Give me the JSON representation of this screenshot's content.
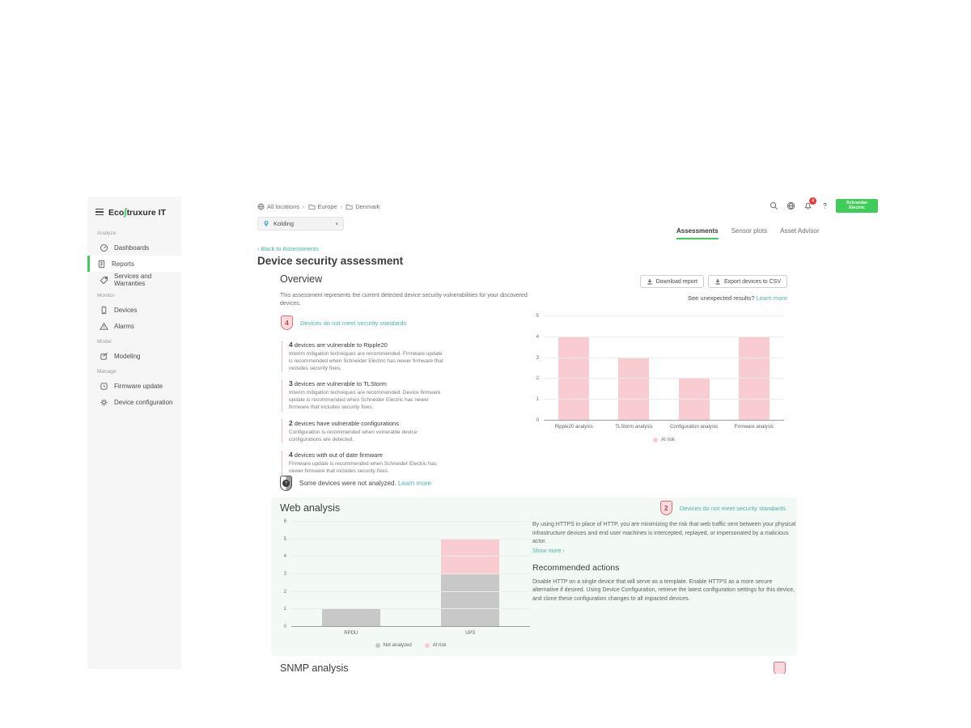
{
  "sidebar": {
    "logo": {
      "text_before": "Eco",
      "mark": "∫",
      "text_after": "truxure IT"
    },
    "sections": [
      {
        "label": "Analyze",
        "items": [
          {
            "label": "Dashboards"
          },
          {
            "label": "Reports"
          },
          {
            "label": "Services and Warranties"
          }
        ]
      },
      {
        "label": "Monitor",
        "items": [
          {
            "label": "Devices"
          },
          {
            "label": "Alarms"
          }
        ]
      },
      {
        "label": "Model",
        "items": [
          {
            "label": "Modeling"
          }
        ]
      },
      {
        "label": "Manage",
        "items": [
          {
            "label": "Firmware update"
          },
          {
            "label": "Device configuration"
          }
        ]
      }
    ]
  },
  "topbar": {
    "breadcrumb": [
      {
        "label": "All locations"
      },
      {
        "label": "Europe"
      },
      {
        "label": "Denmark"
      }
    ],
    "location_selector": {
      "value": "Kolding"
    },
    "notification_count": "4",
    "brand_line1": "Schneider",
    "brand_line2": "Electric"
  },
  "tabs": [
    {
      "label": "Assessments"
    },
    {
      "label": "Sensor plots"
    },
    {
      "label": "Asset Advisor"
    }
  ],
  "page": {
    "back_link": "Back to Assessments",
    "title": "Device security assessment"
  },
  "overview": {
    "heading": "Overview",
    "download_button": "Download report",
    "export_button": "Export devices to CSV",
    "description": "This assessment represents the current detected device security vulnerabilities for your discovered devices.",
    "unexpected_text": "See unexpected results?",
    "learn_more": "Learn more",
    "badge_count": "4",
    "badge_text": "Devices do not meet security standards",
    "findings": [
      {
        "count": "4",
        "title": "devices are vulnerable to Ripple20",
        "description": "Interim mitigation techniques are recommended. Firmware update is recommended when Schneider Electric has newer firmware that includes security fixes."
      },
      {
        "count": "3",
        "title": "devices are vulnerable to TLStorm",
        "description": "Interim mitigation techniques are recommended. Device firmware update is recommended when Schneider Electric has newer firmware that includes security fixes."
      },
      {
        "count": "2",
        "title": "devices have vulnerable configurations",
        "description": "Configuration is recommended when vulnerable device configurations are detected."
      },
      {
        "count": "4",
        "title": "devices with out of date firmware",
        "description": "Firmware update is recommended when Schneider Electric has newer firmware that includes security fixes."
      }
    ],
    "not_analyzed_text": "Some devices were not analyzed.",
    "not_analyzed_link": "Learn more"
  },
  "web_analysis": {
    "heading": "Web analysis",
    "badge_count": "2",
    "badge_text": "Devices do not meet security standards",
    "description": "By using HTTPS in place of HTTP, you are minimizing the risk that web traffic sent between your physical infrastructure devices and end user machines is intercepted, replayed, or impersonated by a malicious actor.",
    "show_more": "Show more ›",
    "recommended_heading": "Recommended actions",
    "recommended_text": "Disable HTTP on a single device that will serve as a template. Enable HTTPS as a more secure alternative if desired. Using Device Configuration, retrieve the latest configuration settings for this device, and clone these configuration changes to all impacted devices."
  },
  "snmp_analysis": {
    "heading": "SNMP analysis"
  },
  "chart_data": [
    {
      "type": "bar",
      "title": "Overview — devices at risk by analysis",
      "categories": [
        "Ripple20 analysis",
        "TLStorm analysis",
        "Configuration analysis",
        "Firmware analysis"
      ],
      "series": [
        {
          "name": "At risk",
          "values": [
            4,
            3,
            2,
            4
          ],
          "color": "#f9ccd2"
        }
      ],
      "xlabel": "",
      "ylabel": "",
      "ylim": [
        0,
        5
      ],
      "yticks": [
        0,
        1,
        2,
        3,
        4,
        5
      ],
      "grid": true,
      "legend_position": "bottom"
    },
    {
      "type": "bar",
      "stacked": true,
      "title": "Web analysis — devices by type",
      "categories": [
        "RPDU",
        "UPS"
      ],
      "series": [
        {
          "name": "Not analyzed",
          "values": [
            1,
            3
          ],
          "color": "#c8c8c8"
        },
        {
          "name": "At risk",
          "values": [
            0,
            2
          ],
          "color": "#f9ccd2"
        }
      ],
      "xlabel": "",
      "ylabel": "",
      "ylim": [
        0,
        6
      ],
      "yticks": [
        0,
        1,
        2,
        3,
        4,
        5,
        6
      ],
      "grid": true,
      "legend_position": "bottom"
    }
  ],
  "colors": {
    "accent_green": "#3dcd58",
    "link_teal": "#4ab3a8",
    "at_risk_pink": "#f9ccd2",
    "not_analyzed_gray": "#c8c8c8",
    "alert_red": "#e53935",
    "badge_fill": "#fbdade",
    "badge_border": "#dd6a72"
  }
}
